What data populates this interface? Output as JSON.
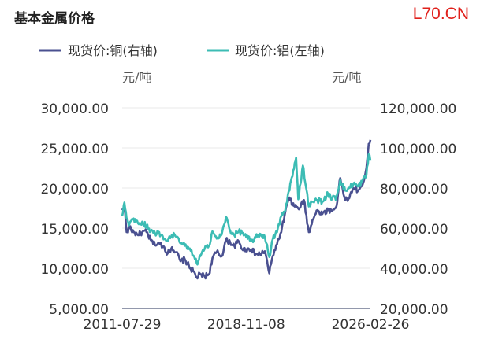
{
  "header": {
    "title": "基本金属价格",
    "watermark": "L70.CN"
  },
  "colors": {
    "copper": "#4a5090",
    "aluminum": "#3cbcb4",
    "axis": "#6e7790",
    "grid": "#e9e9e9",
    "text": "#333333"
  },
  "chart_data": {
    "type": "line",
    "title": "基本金属价格",
    "x_ticks": [
      "2011-07-29",
      "2018-11-08",
      "2026-02-26"
    ],
    "x_range": [
      "2011-07-29",
      "2026-02-26"
    ],
    "y_left": {
      "unit": "元/吨",
      "range": [
        5000,
        30000
      ],
      "ticks": [
        5000,
        10000,
        15000,
        20000,
        25000,
        30000
      ],
      "tick_labels": [
        "5,000.00",
        "10,000.00",
        "15,000.00",
        "20,000.00",
        "25,000.00",
        "30,000.00"
      ]
    },
    "y_right": {
      "unit": "元/吨",
      "range": [
        20000,
        120000
      ],
      "ticks": [
        20000,
        40000,
        60000,
        80000,
        100000,
        120000
      ],
      "tick_labels": [
        "20,000.00",
        "40,000.00",
        "60,000.00",
        "80,000.00",
        "100,000.00",
        "120,000.00"
      ]
    },
    "legend_position": "top-left",
    "grid": true,
    "series": [
      {
        "name": "现货价:铜(右轴)",
        "axis": "right",
        "color": "#4a5090",
        "points": [
          [
            "2011-07-29",
            69000
          ],
          [
            "2011-09-15",
            71000
          ],
          [
            "2011-11-01",
            58000
          ],
          [
            "2012-01-01",
            60000
          ],
          [
            "2012-04-01",
            58000
          ],
          [
            "2012-07-01",
            56500
          ],
          [
            "2012-10-01",
            58000
          ],
          [
            "2013-01-01",
            58000
          ],
          [
            "2013-04-01",
            54000
          ],
          [
            "2013-07-01",
            51500
          ],
          [
            "2013-10-01",
            52500
          ],
          [
            "2014-01-01",
            51000
          ],
          [
            "2014-04-01",
            47500
          ],
          [
            "2014-07-01",
            50500
          ],
          [
            "2014-10-01",
            48000
          ],
          [
            "2015-01-01",
            43500
          ],
          [
            "2015-04-01",
            44500
          ],
          [
            "2015-07-01",
            41000
          ],
          [
            "2015-10-01",
            38500
          ],
          [
            "2015-12-15",
            35500
          ],
          [
            "2016-03-01",
            37000
          ],
          [
            "2016-06-01",
            36000
          ],
          [
            "2016-09-01",
            37000
          ],
          [
            "2016-11-15",
            45000
          ],
          [
            "2017-02-15",
            48000
          ],
          [
            "2017-06-01",
            46000
          ],
          [
            "2017-09-01",
            54000
          ],
          [
            "2017-12-01",
            53000
          ],
          [
            "2018-03-01",
            51000
          ],
          [
            "2018-06-01",
            53500
          ],
          [
            "2018-09-01",
            49000
          ],
          [
            "2018-11-08",
            49500
          ],
          [
            "2019-03-01",
            49500
          ],
          [
            "2019-06-01",
            47000
          ],
          [
            "2019-09-01",
            47000
          ],
          [
            "2019-12-15",
            48500
          ],
          [
            "2020-03-20",
            37500
          ],
          [
            "2020-06-01",
            46000
          ],
          [
            "2020-09-01",
            52000
          ],
          [
            "2020-12-01",
            58000
          ],
          [
            "2021-02-25",
            68000
          ],
          [
            "2021-05-10",
            75000
          ],
          [
            "2021-09-01",
            71000
          ],
          [
            "2022-01-01",
            70000
          ],
          [
            "2022-04-01",
            74000
          ],
          [
            "2022-07-15",
            58000
          ],
          [
            "2022-10-01",
            64000
          ],
          [
            "2023-01-15",
            69000
          ],
          [
            "2023-05-01",
            67000
          ],
          [
            "2023-09-01",
            69000
          ],
          [
            "2023-12-01",
            68500
          ],
          [
            "2024-03-01",
            71000
          ],
          [
            "2024-05-20",
            85000
          ],
          [
            "2024-09-01",
            74000
          ],
          [
            "2024-12-01",
            75000
          ],
          [
            "2025-03-01",
            80000
          ],
          [
            "2025-06-01",
            78500
          ],
          [
            "2025-09-01",
            81000
          ],
          [
            "2025-12-01",
            90000
          ],
          [
            "2026-01-20",
            102000
          ],
          [
            "2026-02-26",
            104000
          ]
        ]
      },
      {
        "name": "现货价:铝(左轴)",
        "axis": "left",
        "color": "#3cbcb4",
        "points": [
          [
            "2011-07-29",
            16500
          ],
          [
            "2011-09-15",
            18200
          ],
          [
            "2011-11-01",
            16200
          ],
          [
            "2012-01-01",
            15500
          ],
          [
            "2012-04-01",
            16200
          ],
          [
            "2012-07-01",
            15600
          ],
          [
            "2012-10-01",
            15800
          ],
          [
            "2013-01-01",
            15200
          ],
          [
            "2013-04-01",
            14700
          ],
          [
            "2013-07-01",
            14400
          ],
          [
            "2013-10-01",
            14500
          ],
          [
            "2014-01-01",
            13600
          ],
          [
            "2014-04-01",
            13400
          ],
          [
            "2014-07-01",
            14200
          ],
          [
            "2014-10-01",
            13900
          ],
          [
            "2015-01-01",
            13100
          ],
          [
            "2015-04-01",
            12800
          ],
          [
            "2015-07-01",
            12400
          ],
          [
            "2015-10-01",
            11600
          ],
          [
            "2015-12-15",
            10600
          ],
          [
            "2016-03-01",
            11500
          ],
          [
            "2016-06-01",
            12400
          ],
          [
            "2016-09-01",
            12800
          ],
          [
            "2016-11-15",
            14600
          ],
          [
            "2017-02-15",
            13700
          ],
          [
            "2017-06-01",
            14200
          ],
          [
            "2017-09-01",
            16400
          ],
          [
            "2017-12-01",
            14700
          ],
          [
            "2018-03-01",
            14100
          ],
          [
            "2018-06-01",
            14600
          ],
          [
            "2018-09-01",
            14400
          ],
          [
            "2018-11-08",
            13900
          ],
          [
            "2019-03-01",
            13400
          ],
          [
            "2019-06-01",
            13800
          ],
          [
            "2019-09-01",
            14300
          ],
          [
            "2019-12-15",
            13900
          ],
          [
            "2020-03-20",
            11400
          ],
          [
            "2020-06-01",
            13600
          ],
          [
            "2020-09-01",
            14500
          ],
          [
            "2020-12-01",
            16500
          ],
          [
            "2021-02-25",
            17200
          ],
          [
            "2021-05-10",
            19600
          ],
          [
            "2021-09-01",
            22400
          ],
          [
            "2021-10-15",
            23800
          ],
          [
            "2021-12-01",
            18600
          ],
          [
            "2022-03-10",
            22800
          ],
          [
            "2022-07-15",
            17700
          ],
          [
            "2022-10-01",
            18300
          ],
          [
            "2023-01-15",
            18500
          ],
          [
            "2023-05-01",
            18300
          ],
          [
            "2023-09-01",
            19300
          ],
          [
            "2023-12-01",
            18700
          ],
          [
            "2024-03-01",
            18900
          ],
          [
            "2024-05-20",
            21000
          ],
          [
            "2024-09-01",
            19700
          ],
          [
            "2024-12-01",
            20000
          ],
          [
            "2025-03-01",
            20600
          ],
          [
            "2025-06-01",
            20200
          ],
          [
            "2025-09-01",
            20800
          ],
          [
            "2025-12-01",
            21600
          ],
          [
            "2026-01-20",
            24200
          ],
          [
            "2026-02-26",
            23400
          ]
        ]
      }
    ]
  }
}
